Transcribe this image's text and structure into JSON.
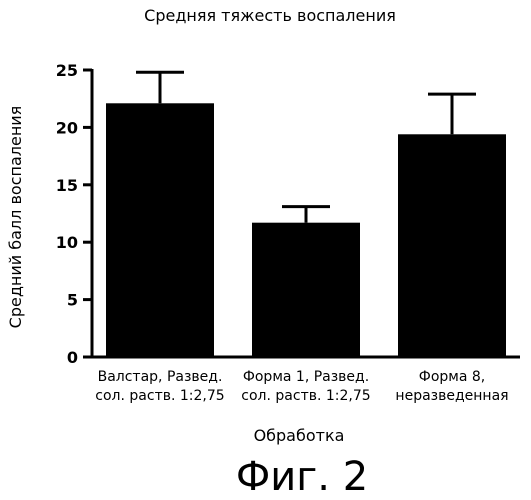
{
  "chart_data": {
    "type": "bar",
    "title": "Средняя тяжесть воспаления",
    "xlabel": "Обработка",
    "ylabel": "Средний балл воспаления",
    "ylim": [
      0,
      25
    ],
    "yticks": [
      0,
      5,
      10,
      15,
      20,
      25
    ],
    "grid": false,
    "categories": [
      [
        "Валстар, Развед.",
        "сол. раств. 1:2,75"
      ],
      [
        "Форма 1, Развед.",
        "сол. раств. 1:2,75"
      ],
      [
        "Форма 8,",
        "неразведенная"
      ]
    ],
    "values": [
      22.1,
      11.7,
      19.4
    ],
    "error_upper": [
      24.8,
      13.1,
      22.9
    ],
    "bar_color": "#000000"
  },
  "figure_caption": "Фиг. 2"
}
